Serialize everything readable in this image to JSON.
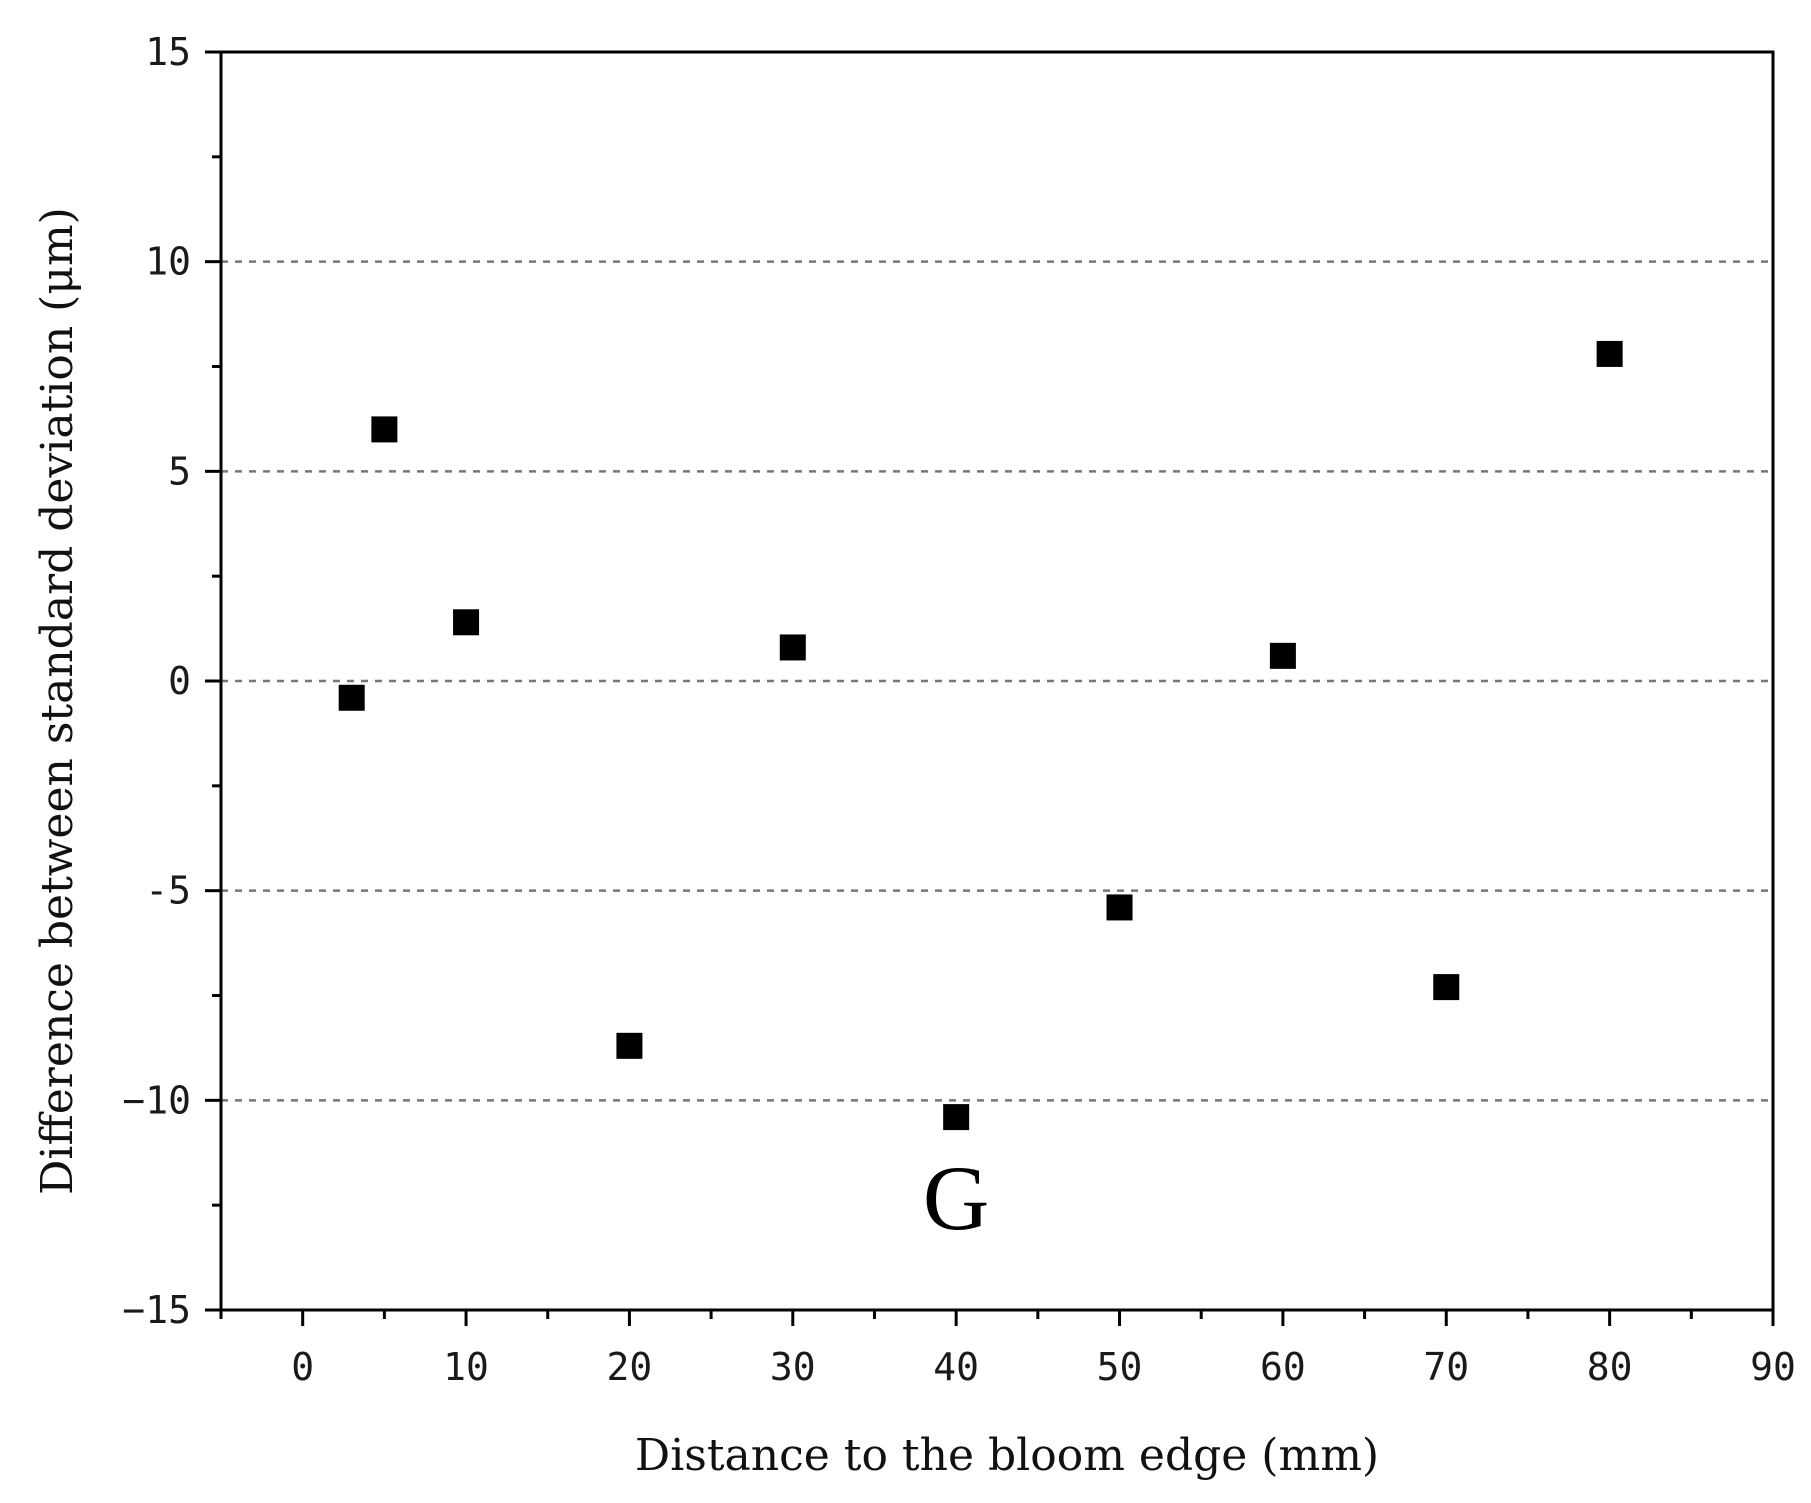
{
  "chart_data": {
    "type": "scatter",
    "xlabel": "Distance to the bloom edge (mm)",
    "ylabel": "Difference between standard deviation (μm)",
    "annotation": "G",
    "annotation_position": {
      "x": 40,
      "y": -12.3
    },
    "xlim": [
      -5,
      90
    ],
    "ylim": [
      -15,
      15
    ],
    "x_ticks": [
      0,
      10,
      20,
      30,
      40,
      50,
      60,
      70,
      80,
      90
    ],
    "y_ticks": [
      -15,
      -10,
      -5,
      0,
      5,
      10,
      15
    ],
    "x_tick_labels": [
      "0",
      "10",
      "20",
      "30",
      "40",
      "50",
      "60",
      "70",
      "80",
      "90"
    ],
    "y_tick_labels": [
      "−15",
      "−10",
      "-5",
      "0",
      "5",
      "10",
      "15"
    ],
    "grid": {
      "y_dashed_at": [
        10,
        5,
        0,
        -5,
        -10
      ]
    },
    "marker": "square",
    "marker_color": "#000000",
    "points": [
      {
        "x": 3,
        "y": -0.4
      },
      {
        "x": 5,
        "y": 6.0
      },
      {
        "x": 10,
        "y": 1.4
      },
      {
        "x": 20,
        "y": -8.7
      },
      {
        "x": 30,
        "y": 0.8
      },
      {
        "x": 40,
        "y": -10.4
      },
      {
        "x": 50,
        "y": -5.4
      },
      {
        "x": 60,
        "y": 0.6
      },
      {
        "x": 70,
        "y": -7.3
      },
      {
        "x": 80,
        "y": 7.8
      }
    ]
  }
}
